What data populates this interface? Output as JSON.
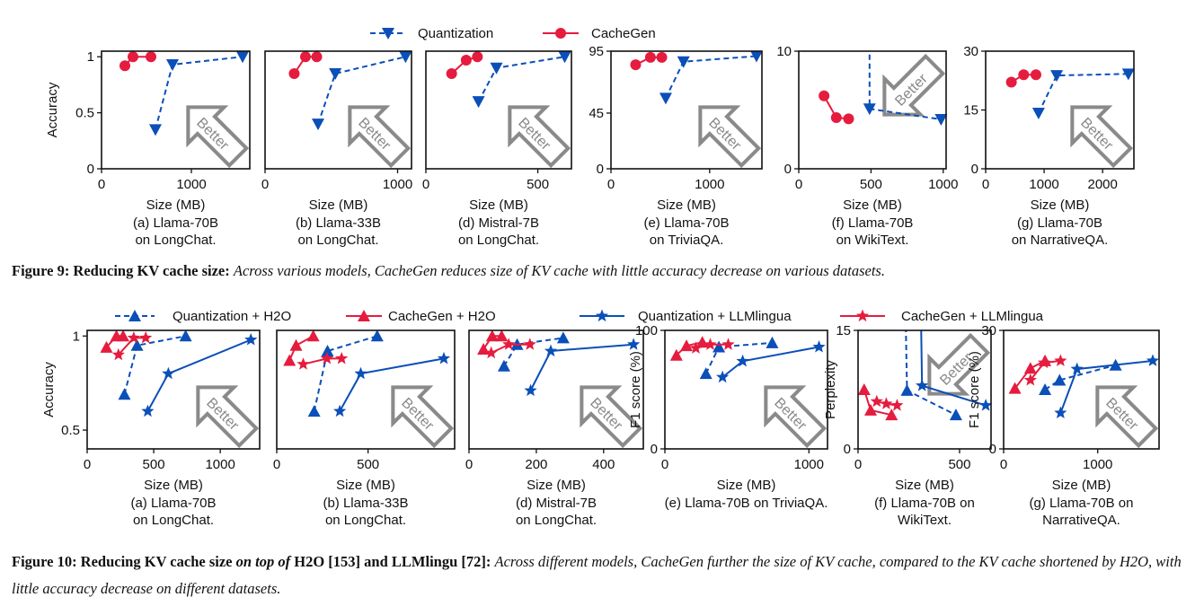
{
  "colors": {
    "quantization": "#0b4fb8",
    "cachegen": "#e51c3e",
    "better_arrow": "#8a8a8a",
    "axis": "#111111"
  },
  "legends": {
    "fig9": [
      {
        "name": "Quantization",
        "color": "#0b4fb8",
        "marker": "triangle-down",
        "line": "dashed"
      },
      {
        "name": "CacheGen",
        "color": "#e51c3e",
        "marker": "circle",
        "line": "solid"
      }
    ],
    "fig10": [
      {
        "name": "Quantization + H2O",
        "color": "#0b4fb8",
        "marker": "triangle-up",
        "line": "dashed"
      },
      {
        "name": "CacheGen + H2O",
        "color": "#e51c3e",
        "marker": "triangle-up",
        "line": "solid"
      },
      {
        "name": "Quantization + LLMlingua",
        "color": "#0b4fb8",
        "marker": "star",
        "line": "solid"
      },
      {
        "name": "CacheGen + LLMlingua",
        "color": "#e51c3e",
        "marker": "star",
        "line": "solid"
      }
    ]
  },
  "better_label": "Better",
  "captions": {
    "fig9": {
      "label": "Figure 9: Reducing KV cache size:",
      "text": "Across various models, CacheGen reduces size of KV cache with little accuracy decrease on various datasets."
    },
    "fig10": {
      "label": "Figure 10:  Reducing KV cache size ",
      "label_italic": "on top of",
      "label_rest": " H2O [153] and LLMlingu [72]:",
      "text": "Across different models, CacheGen further the size of KV cache, compared to the KV cache shortened by H2O, with little accuracy decrease on different datasets."
    }
  },
  "chart_data": [
    {
      "figure": "9",
      "type": "line",
      "caption": [
        "(a) Llama-70B",
        "on LongChat."
      ],
      "xlabel": "Size (MB)",
      "ylabel": "Accuracy",
      "xlim": [
        0,
        1650
      ],
      "ylim": [
        0,
        1.05
      ],
      "xticks": [
        0,
        1000
      ],
      "yticks": [
        0,
        0.5,
        1
      ],
      "better": "up-left",
      "series": [
        {
          "name": "Quantization",
          "points": [
            [
              600,
              0.35
            ],
            [
              790,
              0.93
            ],
            [
              1570,
              1.0
            ]
          ]
        },
        {
          "name": "CacheGen",
          "points": [
            [
              260,
              0.92
            ],
            [
              350,
              1.0
            ],
            [
              550,
              1.0
            ]
          ]
        }
      ]
    },
    {
      "figure": "9",
      "type": "line",
      "caption": [
        "(b) Llama-33B",
        "on LongChat."
      ],
      "xlabel": "Size (MB)",
      "ylabel": "",
      "xlim": [
        0,
        1105
      ],
      "ylim": [
        0,
        1.05
      ],
      "xticks": [
        0,
        1000
      ],
      "yticks": [],
      "better": "up-left",
      "series": [
        {
          "name": "Quantization",
          "points": [
            [
              400,
              0.4
            ],
            [
              530,
              0.85
            ],
            [
              1060,
              1.0
            ]
          ]
        },
        {
          "name": "CacheGen",
          "points": [
            [
              220,
              0.85
            ],
            [
              305,
              1.0
            ],
            [
              390,
              1.0
            ]
          ]
        }
      ]
    },
    {
      "figure": "9",
      "type": "line",
      "caption": [
        "(d) Mistral-7B",
        "on LongChat."
      ],
      "xlabel": "Size (MB)",
      "ylabel": "",
      "xlim": [
        0,
        650
      ],
      "ylim": [
        0,
        1.05
      ],
      "xticks": [
        0,
        500
      ],
      "yticks": [],
      "better": "up-left",
      "series": [
        {
          "name": "Quantization",
          "points": [
            [
              235,
              0.6
            ],
            [
              315,
              0.9
            ],
            [
              620,
              1.0
            ]
          ]
        },
        {
          "name": "CacheGen",
          "points": [
            [
              115,
              0.85
            ],
            [
              180,
              0.97
            ],
            [
              230,
              1.0
            ]
          ]
        }
      ]
    },
    {
      "figure": "9",
      "type": "line",
      "caption": [
        "(e) Llama-70B",
        "on TriviaQA."
      ],
      "xlabel": "Size (MB)",
      "ylabel": "",
      "xlim": [
        0,
        1530
      ],
      "ylim": [
        0,
        95
      ],
      "xticks": [
        0,
        1000
      ],
      "yticks": [
        0,
        45,
        95
      ],
      "better": "up-left",
      "series": [
        {
          "name": "Quantization",
          "points": [
            [
              555,
              57
            ],
            [
              735,
              86.5
            ],
            [
              1475,
              91
            ]
          ]
        },
        {
          "name": "CacheGen",
          "points": [
            [
              250,
              84
            ],
            [
              400,
              90
            ],
            [
              515,
              90
            ]
          ]
        }
      ]
    },
    {
      "figure": "9",
      "type": "line",
      "caption": [
        "(f) Llama-70B",
        "on WikiText."
      ],
      "xlabel": "Size (MB)",
      "ylabel": "",
      "xlim": [
        0,
        1020
      ],
      "ylim": [
        0,
        10
      ],
      "xticks": [
        0,
        500,
        1000
      ],
      "yticks": [
        0,
        10
      ],
      "better": "down-left",
      "series": [
        {
          "name": "Quantization",
          "points": [
            [
              490,
              12
            ],
            [
              490,
              5.1
            ],
            [
              985,
              4.2
            ]
          ]
        },
        {
          "name": "CacheGen",
          "points": [
            [
              175,
              6.2
            ],
            [
              260,
              4.35
            ],
            [
              345,
              4.25
            ]
          ]
        }
      ]
    },
    {
      "figure": "9",
      "type": "line",
      "caption": [
        "(g) Llama-70B",
        "on NarrativeQA."
      ],
      "xlabel": "Size (MB)",
      "ylabel": "",
      "xlim": [
        0,
        2535
      ],
      "ylim": [
        0,
        30
      ],
      "xticks": [
        0,
        1000,
        2000
      ],
      "yticks": [
        0,
        15,
        30
      ],
      "better": "up-left",
      "series": [
        {
          "name": "Quantization",
          "points": [
            [
              905,
              14.2
            ],
            [
              1215,
              23.8
            ],
            [
              2440,
              24.2
            ]
          ]
        },
        {
          "name": "CacheGen",
          "points": [
            [
              440,
              22.1
            ],
            [
              650,
              24
            ],
            [
              860,
              24
            ]
          ]
        }
      ]
    },
    {
      "figure": "10",
      "type": "line",
      "caption": [
        "(a) Llama-70B",
        "on LongChat."
      ],
      "xlabel": "Size (MB)",
      "ylabel": "Accuracy",
      "xlim": [
        0,
        1296
      ],
      "ylim": [
        0.4,
        1.03
      ],
      "xticks": [
        0,
        500,
        1000
      ],
      "yticks": [
        0.5,
        1
      ],
      "better": "up-left",
      "series": [
        {
          "name": "Quantization + H2O",
          "points": [
            [
              280,
              0.69
            ],
            [
              375,
              0.95
            ],
            [
              740,
              1.0
            ]
          ]
        },
        {
          "name": "CacheGen + H2O",
          "points": [
            [
              145,
              0.94
            ],
            [
              220,
              1.0
            ],
            [
              270,
              1.0
            ]
          ]
        },
        {
          "name": "Quantization + LLMlingua",
          "points": [
            [
              455,
              0.6
            ],
            [
              610,
              0.8
            ],
            [
              1230,
              0.98
            ]
          ]
        },
        {
          "name": "CacheGen + LLMlingua",
          "points": [
            [
              235,
              0.9
            ],
            [
              350,
              0.99
            ],
            [
              440,
              0.99
            ]
          ]
        }
      ]
    },
    {
      "figure": "10",
      "type": "line",
      "caption": [
        "(b) Llama-33B",
        "on LongChat."
      ],
      "xlabel": "Size (MB)",
      "ylabel": "",
      "xlim": [
        0,
        974
      ],
      "ylim": [
        0.4,
        1.03
      ],
      "xticks": [
        0,
        500
      ],
      "yticks": [],
      "better": "up-left",
      "series": [
        {
          "name": "Quantization + H2O",
          "points": [
            [
              205,
              0.6
            ],
            [
              278,
              0.92
            ],
            [
              550,
              1.0
            ]
          ]
        },
        {
          "name": "CacheGen + H2O",
          "points": [
            [
              70,
              0.87
            ],
            [
              106,
              0.95
            ],
            [
              200,
              1.0
            ]
          ]
        },
        {
          "name": "Quantization + LLMlingua",
          "points": [
            [
              345,
              0.6
            ],
            [
              460,
              0.8
            ],
            [
              915,
              0.88
            ]
          ]
        },
        {
          "name": "CacheGen + LLMlingua",
          "points": [
            [
              145,
              0.85
            ],
            [
              275,
              0.88
            ],
            [
              355,
              0.88
            ]
          ]
        }
      ]
    },
    {
      "figure": "10",
      "type": "line",
      "caption": [
        "(d) Mistral-7B",
        "on LongChat."
      ],
      "xlabel": "Size (MB)",
      "ylabel": "",
      "xlim": [
        0,
        518
      ],
      "ylim": [
        0.4,
        1.03
      ],
      "xticks": [
        0,
        200,
        400
      ],
      "yticks": [],
      "better": "up-left",
      "series": [
        {
          "name": "Quantization + H2O",
          "points": [
            [
              104,
              0.84
            ],
            [
              143,
              0.955
            ],
            [
              280,
              0.99
            ]
          ]
        },
        {
          "name": "CacheGen + H2O",
          "points": [
            [
              43,
              0.93
            ],
            [
              69,
              1.0
            ],
            [
              97,
              1.0
            ]
          ]
        },
        {
          "name": "Quantization + LLMlingua",
          "points": [
            [
              183,
              0.71
            ],
            [
              243,
              0.92
            ],
            [
              489,
              0.955
            ]
          ]
        },
        {
          "name": "CacheGen + LLMlingua",
          "points": [
            [
              66,
              0.91
            ],
            [
              118,
              0.955
            ],
            [
              181,
              0.955
            ]
          ]
        }
      ]
    },
    {
      "figure": "10",
      "type": "line",
      "caption": [
        "(e) Llama-70B on TriviaQA."
      ],
      "xlabel": "Size (MB)",
      "ylabel": "F1 score (%)",
      "xlim": [
        0,
        1129
      ],
      "ylim": [
        0,
        100
      ],
      "xticks": [
        0,
        1000
      ],
      "yticks": [
        0,
        100
      ],
      "better": "up-left",
      "series": [
        {
          "name": "Quantization + H2O",
          "points": [
            [
              285,
              63.5
            ],
            [
              375,
              86
            ],
            [
              745,
              89.5
            ]
          ]
        },
        {
          "name": "CacheGen + H2O",
          "points": [
            [
              80,
              79
            ],
            [
              150,
              87
            ],
            [
              260,
              90
            ]
          ]
        },
        {
          "name": "Quantization + LLMlingua",
          "points": [
            [
              400,
              60.5
            ],
            [
              540,
              74
            ],
            [
              1070,
              86
            ]
          ]
        },
        {
          "name": "CacheGen + LLMlingua",
          "points": [
            [
              215,
              85
            ],
            [
              315,
              88
            ],
            [
              440,
              88
            ]
          ]
        }
      ]
    },
    {
      "figure": "10",
      "type": "line",
      "caption": [
        "(f) Llama-70B on",
        "WikiText."
      ],
      "xlabel": "Size (MB)",
      "ylabel": "Perplexity",
      "xlim": [
        0,
        655
      ],
      "ylim": [
        0,
        15
      ],
      "xticks": [
        0,
        500
      ],
      "yticks": [
        0,
        15
      ],
      "better": "down-left",
      "series": [
        {
          "name": "Quantization + H2O",
          "points": [
            [
              232,
              20
            ],
            [
              241,
              7.4
            ],
            [
              482,
              4.3
            ]
          ]
        },
        {
          "name": "CacheGen + H2O",
          "points": [
            [
              30,
              7.5
            ],
            [
              62,
              4.9
            ],
            [
              165,
              4.3
            ]
          ]
        },
        {
          "name": "Quantization + LLMlingua",
          "points": [
            [
              308,
              20
            ],
            [
              315,
              8.0
            ],
            [
              629,
              5.5
            ]
          ]
        },
        {
          "name": "CacheGen + LLMlingua",
          "points": [
            [
              92,
              6.0
            ],
            [
              139,
              5.7
            ],
            [
              192,
              5.5
            ]
          ]
        }
      ]
    },
    {
      "figure": "10",
      "type": "line",
      "caption": [
        "(g) Llama-70B on",
        "NarrativeQA."
      ],
      "xlabel": "Size (MB)",
      "ylabel": "F1 score (%)",
      "xlim": [
        0,
        1652
      ],
      "ylim": [
        0,
        30
      ],
      "xticks": [
        0,
        1000
      ],
      "yticks": [
        0,
        30
      ],
      "better": "up-left",
      "series": [
        {
          "name": "Quantization + H2O",
          "points": [
            [
              440,
              15
            ],
            [
              595,
              17.4
            ],
            [
              1190,
              21.2
            ]
          ]
        },
        {
          "name": "CacheGen + H2O",
          "points": [
            [
              120,
              15.3
            ],
            [
              285,
              20.4
            ],
            [
              440,
              22.3
            ]
          ]
        },
        {
          "name": "Quantization + LLMlingua",
          "points": [
            [
              605,
              9.1
            ],
            [
              780,
              20.2
            ],
            [
              1585,
              22.3
            ]
          ]
        },
        {
          "name": "CacheGen + LLMlingua",
          "points": [
            [
              285,
              17.4
            ],
            [
              430,
              21.8
            ],
            [
              605,
              22.3
            ]
          ]
        }
      ]
    }
  ]
}
